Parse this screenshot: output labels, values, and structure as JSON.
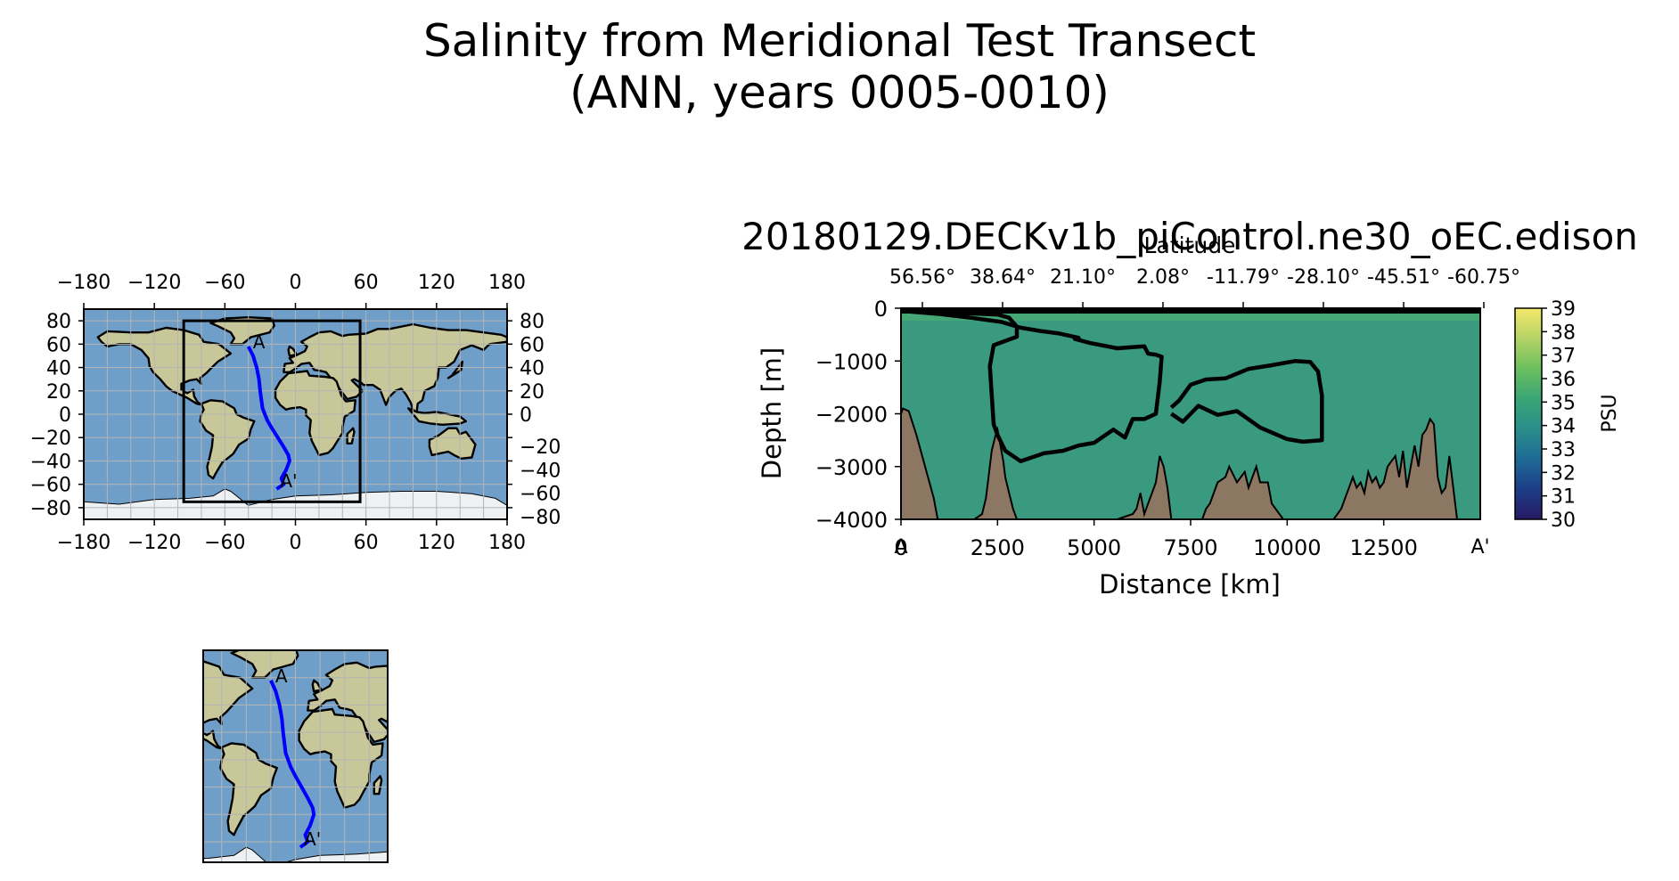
{
  "figure": {
    "title_line1": "Salinity from Meridional Test Transect",
    "title_line2": "(ANN, years 0005-0010)"
  },
  "colors": {
    "ocean": "#6f9fc8",
    "land": "#c8c79a",
    "ice": "#eef1f3",
    "transect": "#0000ff",
    "bathymetry": "#8b7762",
    "salinity_field": "#3a9a80",
    "grid": "#b4b4b4",
    "cmap": [
      "#271a63",
      "#1d3d87",
      "#1e6a96",
      "#2a8e8b",
      "#3aa575",
      "#6bbf5e",
      "#b5d366",
      "#f4e86b"
    ]
  },
  "chart_data": [
    {
      "type": "map",
      "name": "global-map",
      "xticks": [
        "−180",
        "−120",
        "−60",
        "0",
        "60",
        "120",
        "180"
      ],
      "yticks_left": [
        "80",
        "60",
        "40",
        "20",
        "0",
        "−20",
        "−40",
        "−60",
        "−80"
      ],
      "yticks_right": [
        "80",
        "60",
        "40",
        "20",
        "0",
        "−20",
        "−40",
        "−60",
        "−80"
      ],
      "xlim": [
        -180,
        180
      ],
      "ylim": [
        -90,
        90
      ],
      "region_box": {
        "lon": [
          -95,
          55
        ],
        "lat": [
          -75,
          80
        ]
      },
      "transect": {
        "start_label": "A",
        "end_label": "A'",
        "lon": [
          -40,
          -36,
          -33,
          -31,
          -30,
          -28,
          -24,
          -20,
          -15,
          -10,
          -6,
          -5,
          -8,
          -12,
          -10,
          -16
        ],
        "lat": [
          58,
          50,
          40,
          30,
          20,
          5,
          -5,
          -12,
          -20,
          -28,
          -35,
          -40,
          -48,
          -55,
          -60,
          -64
        ]
      }
    },
    {
      "type": "contour",
      "name": "salinity-section",
      "title": "20180129.DECKv1b_piControl.ne30_oEC.edison",
      "xlabel": "Distance [km]",
      "ylabel": "Depth [m]",
      "top_axis_label": "Latitude",
      "top_ticks": [
        "56.56°",
        "38.64°",
        "21.10°",
        "2.08°",
        "-11.79°",
        "-28.10°",
        "-45.51°",
        "-60.75°"
      ],
      "xticks": [
        0,
        2500,
        5000,
        7500,
        10000,
        12500
      ],
      "xtick_labels": [
        "0",
        "2500",
        "5000",
        "7500",
        "10000",
        "12500"
      ],
      "xlim": [
        0,
        15000
      ],
      "yticks": [
        0,
        -1000,
        -2000,
        -3000,
        -4000
      ],
      "ytick_labels": [
        "0",
        "−1000",
        "−2000",
        "−3000",
        "−4000"
      ],
      "ylim": [
        -4000,
        0
      ],
      "start_label": "A",
      "end_label": "A'",
      "colorbar": {
        "label": "PSU",
        "min": 30,
        "max": 39,
        "ticks": [
          "30",
          "31",
          "32",
          "33",
          "34",
          "35",
          "36",
          "37",
          "38",
          "39"
        ]
      },
      "contour_level": 35,
      "contour_outer": {
        "x": [
          0,
          800,
          1800,
          2500,
          2800,
          3000,
          3000,
          2400,
          2300,
          2400,
          2500,
          2700,
          3100,
          3700,
          4200,
          4600,
          5000,
          5500,
          5800,
          6000,
          6300,
          6600,
          6700,
          6750,
          6600,
          6400,
          6300,
          5600,
          4900,
          4500,
          4600,
          4100,
          3600,
          3100,
          2600,
          1800,
          1000,
          0
        ],
        "y": [
          0,
          -80,
          -100,
          -120,
          -180,
          -350,
          -540,
          -700,
          -1100,
          -2200,
          -2400,
          -2700,
          -2900,
          -2750,
          -2700,
          -2600,
          -2550,
          -2300,
          -2450,
          -2100,
          -2100,
          -2000,
          -1400,
          -920,
          -880,
          -860,
          -720,
          -760,
          -660,
          -580,
          -560,
          -480,
          -430,
          -370,
          -260,
          -180,
          -110,
          -50
        ]
      },
      "contour_inner": {
        "x": [
          7000,
          7200,
          7500,
          7900,
          8400,
          9000,
          9600,
          10200,
          10600,
          10800,
          10900,
          10900,
          10400,
          10000,
          9300,
          8700,
          8200,
          7700,
          7300,
          7000
        ],
        "y": [
          -1880,
          -1750,
          -1450,
          -1350,
          -1330,
          -1150,
          -1080,
          -1000,
          -1020,
          -1200,
          -1650,
          -2500,
          -2530,
          -2480,
          -2260,
          -1950,
          -2020,
          -1850,
          -2150,
          -2000
        ]
      },
      "bathymetry": {
        "x": [
          0,
          50,
          200,
          400,
          550,
          700,
          850,
          950,
          1100,
          1300,
          1500,
          1700,
          1900,
          2100,
          2200,
          2250,
          2350,
          2450,
          2500,
          2550,
          2650,
          2700,
          2800,
          2900,
          3000,
          3100,
          3200,
          3300,
          3500,
          3800,
          4100,
          4400,
          4700,
          5000,
          5300,
          5600,
          5800,
          6000,
          6100,
          6200,
          6300,
          6400,
          6500,
          6600,
          6700,
          6800,
          6900,
          7000,
          7200,
          7400,
          7600,
          7800,
          7900,
          8000,
          8100,
          8200,
          8400,
          8500,
          8700,
          8900,
          9000,
          9100,
          9200,
          9300,
          9500,
          9600,
          9700,
          9800,
          9900,
          10000,
          10200,
          10500,
          10800,
          11000,
          11200,
          11300,
          11400,
          11500,
          11600,
          11700,
          11800,
          11900,
          12000,
          12100,
          12200,
          12300,
          12400,
          12500,
          12600,
          12700,
          12800,
          12900,
          13000,
          13100,
          13200,
          13300,
          13400,
          13500,
          13600,
          13700,
          13800,
          13900,
          14000,
          14100,
          14200,
          14300,
          14400,
          14500,
          14600,
          14700,
          14800,
          14900,
          15000
        ],
        "y": [
          -2000,
          -1900,
          -1950,
          -2400,
          -2800,
          -3200,
          -3600,
          -4000,
          -4000,
          -4000,
          -4000,
          -4000,
          -4000,
          -3900,
          -3600,
          -3300,
          -2700,
          -2400,
          -2300,
          -2500,
          -2900,
          -3200,
          -3500,
          -3800,
          -4000,
          -4000,
          -4000,
          -4000,
          -4000,
          -4000,
          -4000,
          -4000,
          -4000,
          -4000,
          -4000,
          -4000,
          -3950,
          -3900,
          -3800,
          -3500,
          -3900,
          -3700,
          -3500,
          -3300,
          -2800,
          -3000,
          -3400,
          -4000,
          -4000,
          -4000,
          -4000,
          -4000,
          -3800,
          -3700,
          -3500,
          -3300,
          -3200,
          -3000,
          -3300,
          -3100,
          -3400,
          -3200,
          -3000,
          -3300,
          -3300,
          -3700,
          -3800,
          -3900,
          -4000,
          -4000,
          -4000,
          -4000,
          -4000,
          -4000,
          -4000,
          -3900,
          -3800,
          -3600,
          -3400,
          -3200,
          -3400,
          -3300,
          -3500,
          -3100,
          -3300,
          -3200,
          -3400,
          -3300,
          -3000,
          -2900,
          -2800,
          -3200,
          -2700,
          -3400,
          -3000,
          -2600,
          -3000,
          -2400,
          -2300,
          -2100,
          -2200,
          -3200,
          -3500,
          -3400,
          -2800,
          -3400,
          -4000,
          -4000,
          -4000,
          -4000,
          -4000,
          -4000,
          -4000
        ]
      }
    },
    {
      "type": "map",
      "name": "regional-inset-map",
      "xlim": [
        -95,
        55
      ],
      "ylim": [
        -75,
        80
      ],
      "transect_start_label": "A",
      "transect_end_label": "A'"
    }
  ]
}
